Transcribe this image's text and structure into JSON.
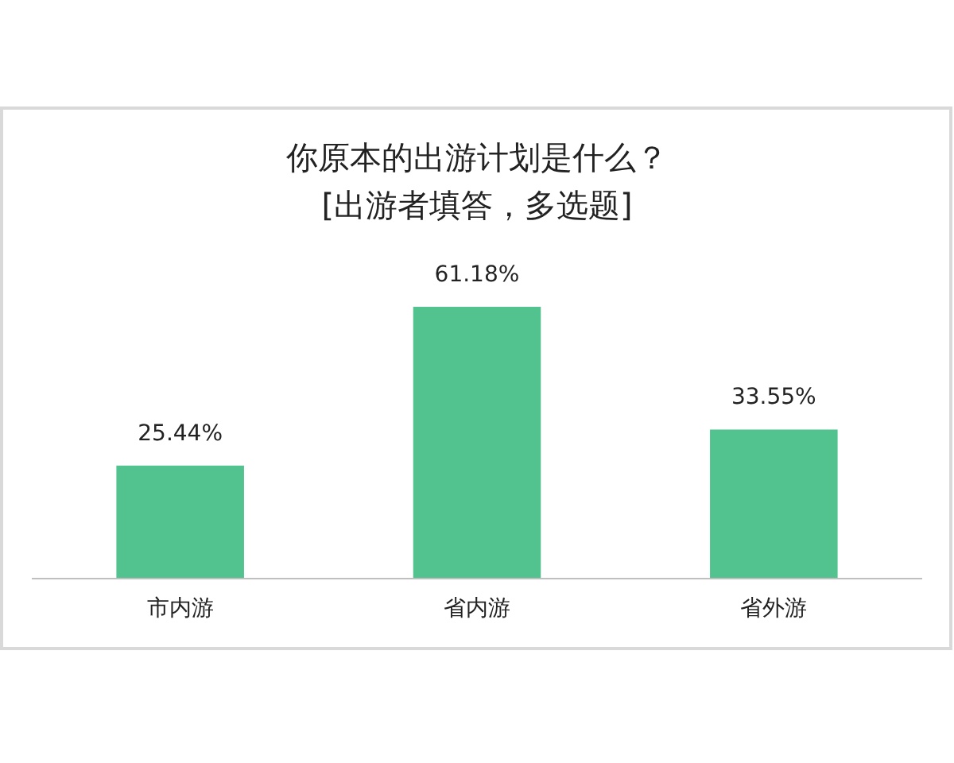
{
  "chart_data": {
    "type": "bar",
    "title": "你原本的出游计划是什么？\n[出游者填答，多选题]",
    "categories": [
      "市内游",
      "省内游",
      "省外游"
    ],
    "values": [
      25.44,
      61.18,
      33.55
    ],
    "color": "#52c28f",
    "value_labels": [
      "25.44%",
      "61.18%",
      "33.55%"
    ]
  }
}
